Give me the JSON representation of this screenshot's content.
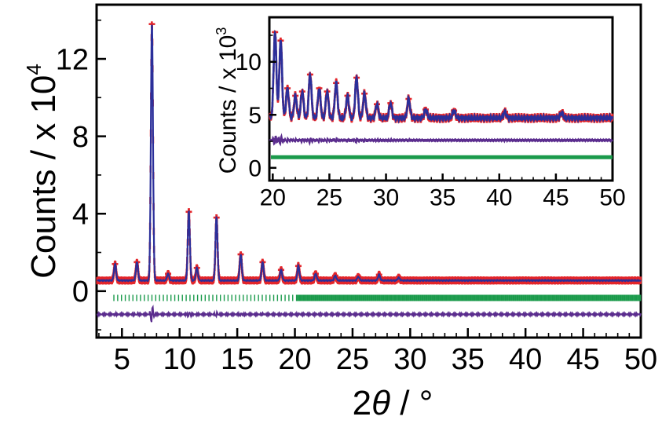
{
  "chart_data": [
    {
      "type": "line",
      "role": "main",
      "xlabel_parts": [
        "2",
        "θ",
        " / °"
      ],
      "ylabel_parts": [
        "Counts / x 10",
        "4"
      ],
      "xlim": [
        2.8,
        50
      ],
      "ylim": [
        -2.4,
        14.8
      ],
      "x_ticks": [
        5,
        10,
        15,
        20,
        25,
        30,
        35,
        40,
        45,
        50
      ],
      "y_ticks": [
        0,
        4,
        8,
        12
      ],
      "grid": false,
      "legend": "none",
      "colors": {
        "observed": "#e3262b",
        "calculated": "#2b2f9a",
        "difference": "#5b2d8e",
        "reflections": "#1a9a4b"
      },
      "baseline": 0.55,
      "peaks": [
        {
          "x": 4.4,
          "y": 1.4
        },
        {
          "x": 6.3,
          "y": 1.5
        },
        {
          "x": 7.6,
          "y": 13.8
        },
        {
          "x": 9.0,
          "y": 0.9
        },
        {
          "x": 10.8,
          "y": 4.1
        },
        {
          "x": 11.5,
          "y": 1.2
        },
        {
          "x": 13.2,
          "y": 3.8
        },
        {
          "x": 15.3,
          "y": 1.9
        },
        {
          "x": 17.2,
          "y": 1.5
        },
        {
          "x": 18.8,
          "y": 1.1
        },
        {
          "x": 20.3,
          "y": 1.3
        },
        {
          "x": 21.8,
          "y": 0.9
        },
        {
          "x": 23.5,
          "y": 0.8
        },
        {
          "x": 25.5,
          "y": 0.75
        },
        {
          "x": 27.3,
          "y": 0.85
        },
        {
          "x": 29.0,
          "y": 0.7
        }
      ],
      "reflections_y": -0.35,
      "difference_y": -1.2
    },
    {
      "type": "line",
      "role": "inset",
      "ylabel_parts": [
        "Counts / x 10",
        "3"
      ],
      "xlim": [
        19.7,
        50
      ],
      "ylim": [
        -1.2,
        14.2
      ],
      "x_ticks": [
        20,
        25,
        30,
        35,
        40,
        45,
        50
      ],
      "y_ticks": [
        0,
        5,
        10
      ],
      "baseline": 4.7,
      "peaks": [
        {
          "x": 20.2,
          "y": 12.8
        },
        {
          "x": 20.7,
          "y": 12.0
        },
        {
          "x": 21.3,
          "y": 7.5
        },
        {
          "x": 22.0,
          "y": 6.8
        },
        {
          "x": 22.6,
          "y": 7.2
        },
        {
          "x": 23.3,
          "y": 8.8
        },
        {
          "x": 24.1,
          "y": 7.5
        },
        {
          "x": 24.8,
          "y": 7.2
        },
        {
          "x": 25.6,
          "y": 8.0
        },
        {
          "x": 26.6,
          "y": 6.8
        },
        {
          "x": 27.4,
          "y": 8.5
        },
        {
          "x": 28.1,
          "y": 7.0
        },
        {
          "x": 29.2,
          "y": 6.0
        },
        {
          "x": 30.4,
          "y": 6.1
        },
        {
          "x": 32.0,
          "y": 6.5
        },
        {
          "x": 33.5,
          "y": 5.5
        },
        {
          "x": 36.0,
          "y": 5.4
        },
        {
          "x": 40.5,
          "y": 5.3
        },
        {
          "x": 45.5,
          "y": 5.2
        }
      ],
      "difference_y": 2.6,
      "reflections_y": 1.0
    }
  ]
}
